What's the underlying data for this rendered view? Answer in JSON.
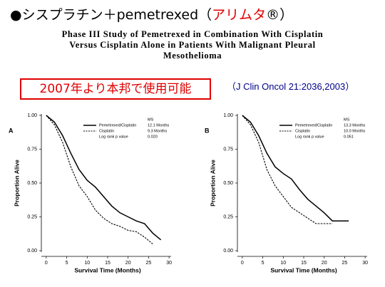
{
  "header": {
    "title_prefix": "●シスプラチン＋pemetrexed（",
    "title_highlight": "アリムタ",
    "title_suffix": "®）",
    "study_lines": [
      "Phase III Study of Pemetrexed in Combination With Cisplatin",
      "Versus Cisplatin Alone in Patients With Malignant Pleural",
      "Mesothelioma"
    ],
    "note": "2007年より本邦で使用可能",
    "citation": "（J Clin Oncol 21:2036,2003）"
  },
  "chart_data": [
    {
      "type": "line",
      "label": "A",
      "x_label": "Survival Time (Months)",
      "y_label": "Proportion Alive",
      "x": [
        0,
        2,
        4,
        6,
        8,
        10,
        12,
        14,
        16,
        18,
        20,
        22,
        24,
        26,
        28
      ],
      "xlim": [
        -0.5,
        30.5
      ],
      "xticks": [
        0,
        5,
        10,
        15,
        20,
        25,
        30
      ],
      "ylim": [
        0,
        1
      ],
      "yticks": [
        {
          "value": 0,
          "label": "0.00"
        },
        {
          "value": 0.25,
          "label": "0.25"
        },
        {
          "value": 0.5,
          "label": "0.50"
        },
        {
          "value": 0.75,
          "label": "0.75"
        },
        {
          "value": 1,
          "label": "1.00"
        }
      ],
      "legend_header": "MS",
      "p_label": "Log rank p value",
      "p_value": "0.020",
      "series": [
        {
          "name": "Pemetrexed/Cisplatin",
          "ms": "12.1 Months",
          "color": "#000000",
          "dash": false,
          "values": [
            1,
            0.95,
            0.85,
            0.72,
            0.6,
            0.52,
            0.47,
            0.4,
            0.33,
            0.28,
            0.25,
            0.22,
            0.2,
            0.13,
            0.08
          ]
        },
        {
          "name": "Cisplatin",
          "ms": "9.3 Months",
          "color": "#000000",
          "dash": true,
          "values": [
            1,
            0.93,
            0.8,
            0.62,
            0.48,
            0.4,
            0.3,
            0.24,
            0.2,
            0.18,
            0.15,
            0.14,
            0.1,
            0.05,
            null
          ]
        }
      ]
    },
    {
      "type": "line",
      "label": "B",
      "x_label": "Survival Time (Months)",
      "y_label": "Proportion Alive",
      "x": [
        0,
        2,
        4,
        6,
        8,
        10,
        12,
        14,
        16,
        18,
        20,
        22,
        24,
        26,
        28
      ],
      "xlim": [
        -0.5,
        30.5
      ],
      "xticks": [
        0,
        5,
        10,
        15,
        20,
        25,
        30
      ],
      "ylim": [
        0,
        1
      ],
      "yticks": [
        {
          "value": 0,
          "label": "0.00"
        },
        {
          "value": 0.25,
          "label": "0.25"
        },
        {
          "value": 0.5,
          "label": "0.50"
        },
        {
          "value": 0.75,
          "label": "0.75"
        },
        {
          "value": 1,
          "label": "1.00"
        }
      ],
      "legend_header": "MS",
      "p_label": "Log rank p value",
      "p_value": "0.051",
      "series": [
        {
          "name": "Pemetrexed/Cisplatin",
          "ms": "13.3 Months",
          "color": "#000000",
          "dash": false,
          "values": [
            1,
            0.95,
            0.85,
            0.72,
            0.62,
            0.57,
            0.53,
            0.45,
            0.38,
            0.33,
            0.28,
            0.22,
            0.22,
            0.22,
            null
          ]
        },
        {
          "name": "Cisplatin",
          "ms": "10.0 Months",
          "color": "#000000",
          "dash": true,
          "values": [
            1,
            0.93,
            0.8,
            0.6,
            0.48,
            0.4,
            0.32,
            0.28,
            0.24,
            0.2,
            0.2,
            0.2,
            null,
            null,
            null
          ]
        }
      ]
    }
  ]
}
